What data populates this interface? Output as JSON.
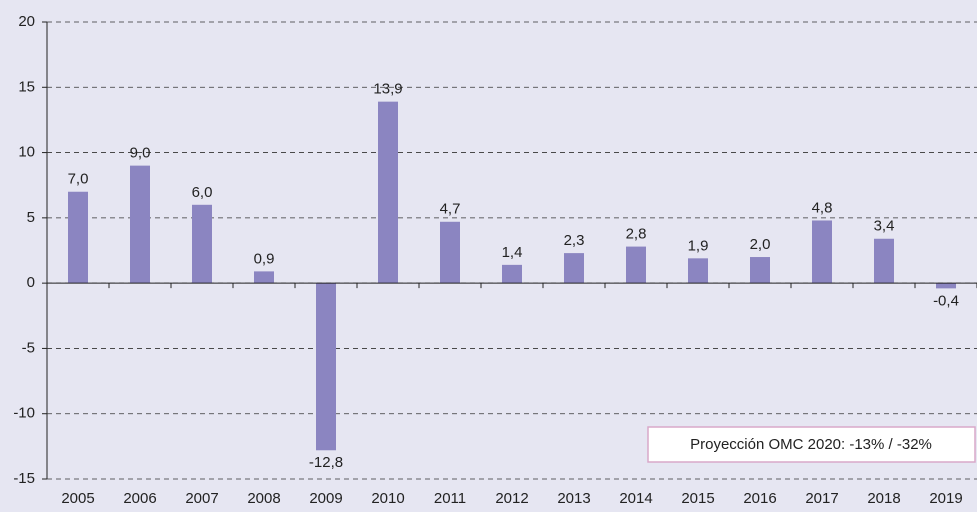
{
  "chart_data": {
    "type": "bar",
    "categories": [
      "2005",
      "2006",
      "2007",
      "2008",
      "2009",
      "2010",
      "2011",
      "2012",
      "2013",
      "2014",
      "2015",
      "2016",
      "2017",
      "2018",
      "2019"
    ],
    "values": [
      7.0,
      9.0,
      6.0,
      0.9,
      -12.8,
      13.9,
      4.7,
      1.4,
      2.3,
      2.8,
      1.9,
      2.0,
      4.8,
      3.4,
      -0.4
    ],
    "value_labels": [
      "7,0",
      "9,0",
      "6,0",
      "0,9",
      "-12,8",
      "13,9",
      "4,7",
      "1,4",
      "2,3",
      "2,8",
      "1,9",
      "2,0",
      "4,8",
      "3,4",
      "-0,4"
    ],
    "color": "#8b85c1",
    "ylim": [
      -15,
      20
    ],
    "yticks": [
      -15,
      -10,
      -5,
      0,
      5,
      10,
      15,
      20
    ],
    "grid": true,
    "annotation": "Proyección OMC 2020: -13% / -32%"
  }
}
